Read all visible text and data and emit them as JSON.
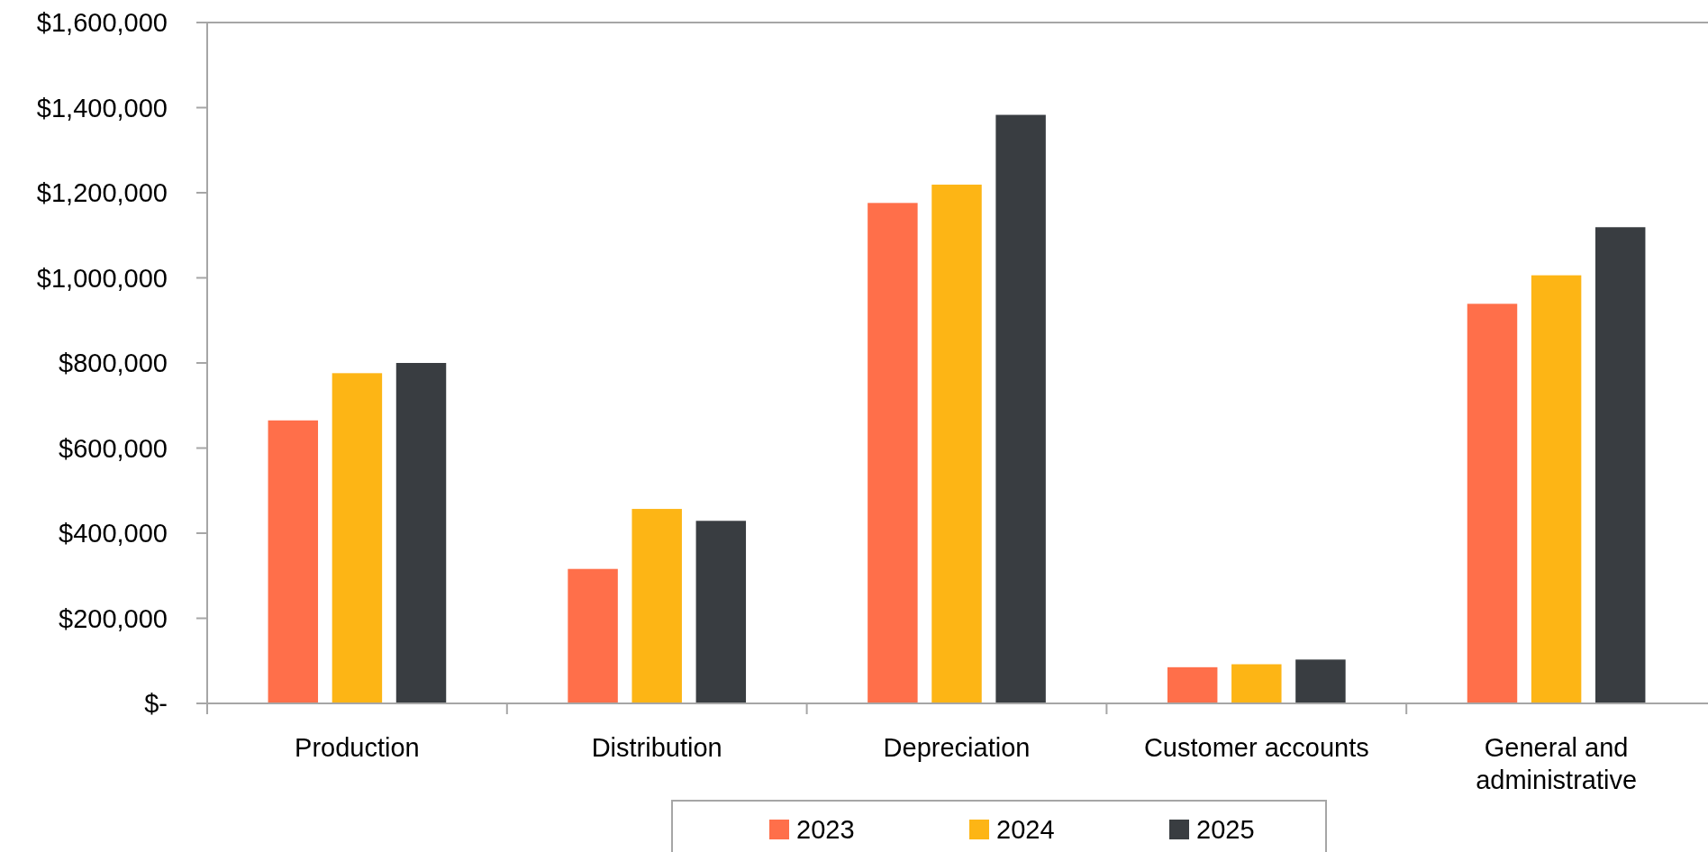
{
  "chart_data": {
    "type": "bar",
    "categories": [
      "Production",
      "Distribution",
      "Depreciation",
      "Customer accounts",
      "General and administrative"
    ],
    "series": [
      {
        "name": "2023",
        "color": "#ff6f4a",
        "values": [
          665000,
          316000,
          1176000,
          85000,
          939000
        ]
      },
      {
        "name": "2024",
        "color": "#fdb515",
        "values": [
          776000,
          457000,
          1219000,
          92000,
          1006000
        ]
      },
      {
        "name": "2025",
        "color": "#393d41",
        "values": [
          800000,
          429000,
          1383000,
          103000,
          1119000
        ]
      }
    ],
    "ylim": [
      0,
      1600000
    ],
    "yticks": [
      {
        "value": 0,
        "label": "$-"
      },
      {
        "value": 200000,
        "label": "$200,000"
      },
      {
        "value": 400000,
        "label": "$400,000"
      },
      {
        "value": 600000,
        "label": "$600,000"
      },
      {
        "value": 800000,
        "label": "$800,000"
      },
      {
        "value": 1000000,
        "label": "$1,000,000"
      },
      {
        "value": 1200000,
        "label": "$1,200,000"
      },
      {
        "value": 1400000,
        "label": "$1,400,000"
      },
      {
        "value": 1600000,
        "label": "$1,600,000"
      }
    ],
    "grid": false,
    "legend": "bottom"
  }
}
